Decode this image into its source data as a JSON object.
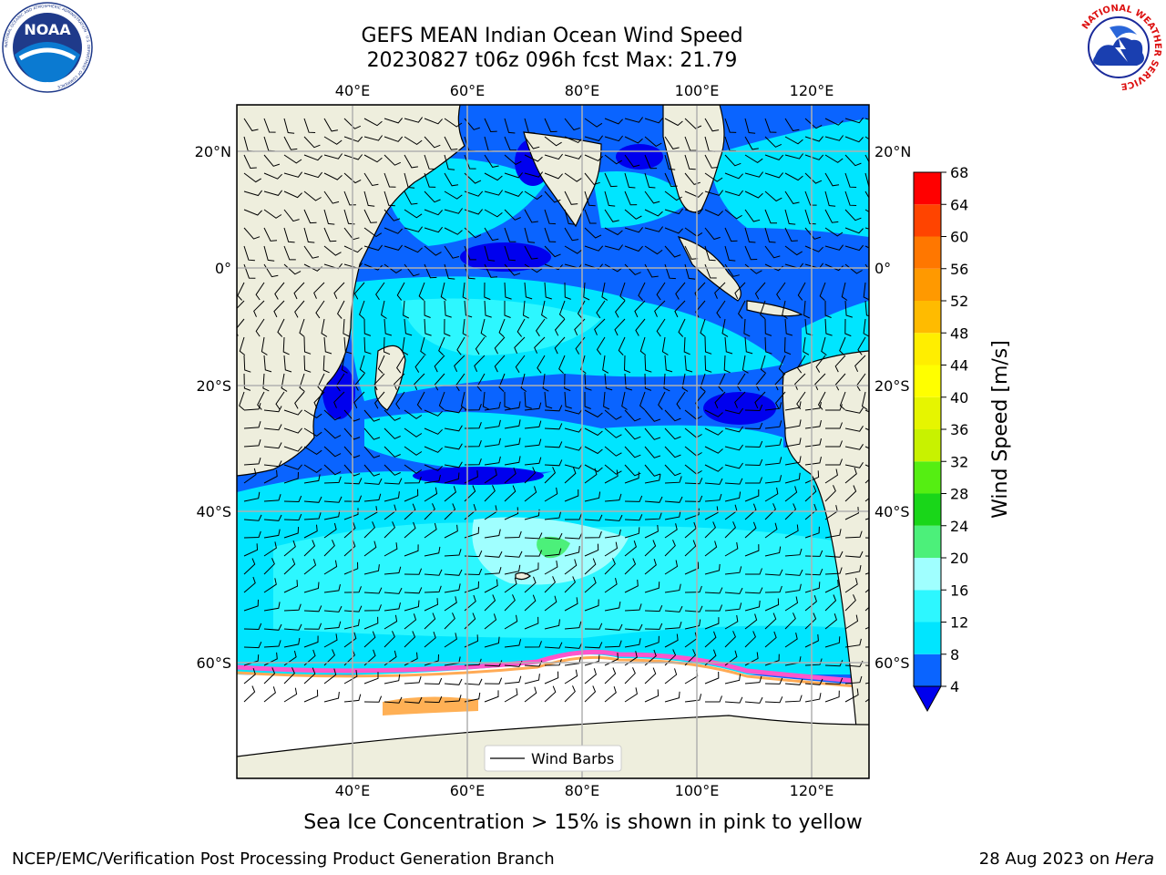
{
  "title": {
    "line1": "GEFS MEAN Indian Ocean Wind Speed",
    "line2": "20230827 t06z 096h fcst   Max: 21.79"
  },
  "logos": {
    "noaa": {
      "text": "NOAA",
      "ring_text": "NATIONAL OCEANIC AND ATMOSPHERIC ADMINISTRATION · U.S. DEPARTMENT OF COMMERCE"
    },
    "nws": {
      "ring_text": "NATIONAL WEATHER SERVICE"
    }
  },
  "map": {
    "lon_labels": [
      "40°E",
      "60°E",
      "80°E",
      "100°E",
      "120°E"
    ],
    "lat_labels": [
      "20°N",
      "0°",
      "20°S",
      "40°S",
      "60°S"
    ],
    "lon_values": [
      40,
      60,
      80,
      100,
      120
    ],
    "lat_values": [
      20,
      0,
      -20,
      -40,
      -60
    ],
    "legend_label": "Wind Barbs",
    "colors": {
      "land": "#eeeedd",
      "ice_free": "#ffffff",
      "grid": "#b0b0b0"
    }
  },
  "colorbar": {
    "label": "Wind Speed [m/s]",
    "ticks": [
      "4",
      "8",
      "12",
      "16",
      "20",
      "24",
      "28",
      "32",
      "36",
      "40",
      "44",
      "48",
      "52",
      "56",
      "60",
      "64",
      "68"
    ],
    "bins": [
      {
        "from": 4,
        "to": 8,
        "color": "#0a64ff"
      },
      {
        "from": 8,
        "to": 12,
        "color": "#00e5ff"
      },
      {
        "from": 12,
        "to": 16,
        "color": "#2df7ff"
      },
      {
        "from": 16,
        "to": 20,
        "color": "#a0ffff"
      },
      {
        "from": 20,
        "to": 24,
        "color": "#4cf07a"
      },
      {
        "from": 24,
        "to": 28,
        "color": "#19d619"
      },
      {
        "from": 28,
        "to": 32,
        "color": "#55ee12"
      },
      {
        "from": 32,
        "to": 36,
        "color": "#c8f200"
      },
      {
        "from": 36,
        "to": 40,
        "color": "#e6f500"
      },
      {
        "from": 40,
        "to": 44,
        "color": "#ffff00"
      },
      {
        "from": 44,
        "to": 48,
        "color": "#ffee00"
      },
      {
        "from": 48,
        "to": 52,
        "color": "#ffbb00"
      },
      {
        "from": 52,
        "to": 56,
        "color": "#ff9900"
      },
      {
        "from": 56,
        "to": 60,
        "color": "#ff7700"
      },
      {
        "from": 60,
        "to": 64,
        "color": "#ff4400"
      },
      {
        "from": 64,
        "to": 68,
        "color": "#ff0000"
      }
    ],
    "under_color": "#0000ee"
  },
  "captions": {
    "sea_ice": "Sea Ice Concentration > 15% is shown in pink to yellow",
    "footer_left": "NCEP/EMC/Verification Post Processing Product Generation Branch",
    "footer_date": "28 Aug 2023 on ",
    "footer_machine": "Hera"
  }
}
